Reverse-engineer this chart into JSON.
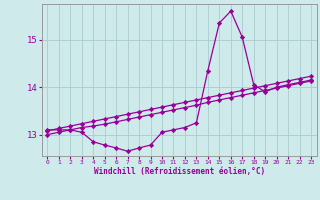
{
  "background_color": "#ceeaea",
  "grid_color": "#aacccc",
  "line_color": "#990099",
  "marker_color": "#990099",
  "xlabel": "Windchill (Refroidissement éolien,°C)",
  "xlim": [
    -0.5,
    23.5
  ],
  "ylim": [
    12.55,
    15.75
  ],
  "yticks": [
    13,
    14,
    15
  ],
  "xticks": [
    0,
    1,
    2,
    3,
    4,
    5,
    6,
    7,
    8,
    9,
    10,
    11,
    12,
    13,
    14,
    15,
    16,
    17,
    18,
    19,
    20,
    21,
    22,
    23
  ],
  "series1_x": [
    0,
    1,
    2,
    3,
    4,
    5,
    6,
    7,
    8,
    9,
    10,
    11,
    12,
    13,
    14,
    15,
    16,
    17,
    18,
    19,
    20,
    21,
    22,
    23
  ],
  "series1_y": [
    13.1,
    13.1,
    13.1,
    13.05,
    12.85,
    12.78,
    12.72,
    12.65,
    12.72,
    12.78,
    13.05,
    13.1,
    13.15,
    13.25,
    14.35,
    15.35,
    15.6,
    15.05,
    14.05,
    13.9,
    14.0,
    14.05,
    14.1,
    14.15
  ],
  "series2_x": [
    0,
    1,
    2,
    3,
    4,
    5,
    6,
    7,
    8,
    9,
    10,
    11,
    12,
    13,
    14,
    15,
    16,
    17,
    18,
    19,
    20,
    21,
    22,
    23
  ],
  "series2_y": [
    13.0,
    13.05,
    13.1,
    13.15,
    13.18,
    13.22,
    13.27,
    13.32,
    13.37,
    13.42,
    13.47,
    13.52,
    13.57,
    13.62,
    13.68,
    13.73,
    13.78,
    13.83,
    13.88,
    13.93,
    13.98,
    14.03,
    14.08,
    14.13
  ],
  "series3_x": [
    0,
    1,
    2,
    3,
    4,
    5,
    6,
    7,
    8,
    9,
    10,
    11,
    12,
    13,
    14,
    15,
    16,
    17,
    18,
    19,
    20,
    21,
    22,
    23
  ],
  "series3_y": [
    13.08,
    13.13,
    13.18,
    13.23,
    13.28,
    13.33,
    13.38,
    13.43,
    13.48,
    13.53,
    13.58,
    13.63,
    13.68,
    13.73,
    13.78,
    13.83,
    13.88,
    13.93,
    13.98,
    14.03,
    14.08,
    14.13,
    14.18,
    14.23
  ]
}
